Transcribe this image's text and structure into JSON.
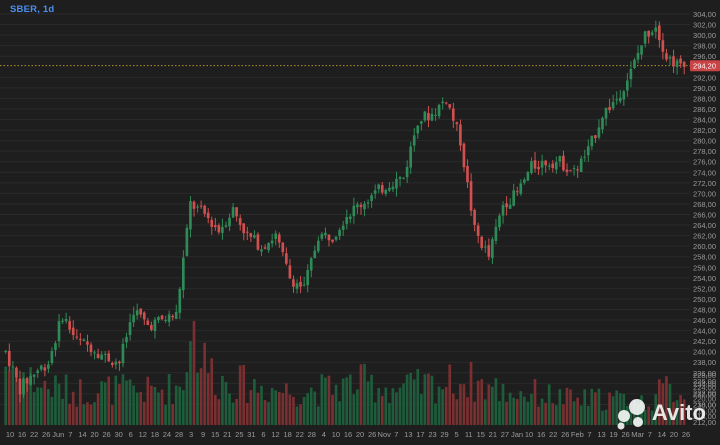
{
  "header": {
    "symbol_label": "SBER, 1d"
  },
  "watermark": {
    "text": "Avito"
  },
  "colors": {
    "background": "#1e1e1e",
    "grid": "#2a2a2a",
    "up": "#2e8b57",
    "down": "#d0504f",
    "volume_up": "#1f5c3b",
    "volume_down": "#7a2f30",
    "price_line": "#c9a227",
    "price_badge": "#c94444",
    "axis_text": "#9a9a9a"
  },
  "chart_data": {
    "type": "candlestick",
    "ylim": [
      228,
      304
    ],
    "current_price": {
      "value": 294.2,
      "label": "294,20"
    },
    "y_ticks": [
      "230,00",
      "232,00",
      "234,00",
      "236,00",
      "238,00",
      "240,00",
      "242,00",
      "244,00",
      "246,00",
      "248,00",
      "250,00",
      "252,00",
      "254,00",
      "256,00",
      "258,00",
      "260,00",
      "262,00",
      "264,00",
      "266,00",
      "268,00",
      "270,00",
      "272,00",
      "274,00",
      "276,00",
      "278,00",
      "280,00",
      "282,00",
      "284,00",
      "286,00",
      "288,00",
      "290,00",
      "292,00",
      "296,00",
      "298,00",
      "300,00",
      "302,00",
      "304,00"
    ],
    "y_tick_values": [
      230,
      232,
      234,
      236,
      238,
      240,
      242,
      244,
      246,
      248,
      250,
      252,
      254,
      256,
      258,
      260,
      262,
      264,
      266,
      268,
      270,
      272,
      274,
      276,
      278,
      280,
      282,
      284,
      286,
      288,
      290,
      292,
      296,
      298,
      300,
      302,
      304
    ],
    "volume_ticks": [
      "212,00",
      "214,00",
      "216,00",
      "218,00",
      "220,00",
      "222,00",
      "224,00",
      "226,00",
      "228,00"
    ],
    "volume_tick_values": [
      212,
      214,
      216,
      218,
      220,
      222,
      224,
      226,
      228
    ],
    "x_ticks": [
      "10",
      "16",
      "22",
      "26",
      "Jun",
      "7",
      "14",
      "20",
      "26",
      "30",
      "6",
      "12",
      "18",
      "24",
      "28",
      "3",
      "9",
      "15",
      "21",
      "25",
      "31",
      "6",
      "12",
      "18",
      "22",
      "28",
      "4",
      "10",
      "16",
      "20",
      "26",
      "Nov",
      "7",
      "13",
      "17",
      "23",
      "29",
      "5",
      "11",
      "15",
      "21",
      "27",
      "Jan",
      "10",
      "16",
      "22",
      "26",
      "Feb",
      "7",
      "13",
      "19",
      "26",
      "Mar",
      "7",
      "14",
      "20",
      "26"
    ],
    "price_anchors": [
      [
        0,
        240
      ],
      [
        4,
        233
      ],
      [
        8,
        236
      ],
      [
        12,
        238
      ],
      [
        16,
        247
      ],
      [
        20,
        242
      ],
      [
        24,
        241
      ],
      [
        28,
        239
      ],
      [
        32,
        238
      ],
      [
        36,
        248
      ],
      [
        40,
        245
      ],
      [
        44,
        246
      ],
      [
        48,
        247
      ],
      [
        52,
        268
      ],
      [
        56,
        266
      ],
      [
        60,
        263
      ],
      [
        64,
        267
      ],
      [
        68,
        262
      ],
      [
        72,
        260
      ],
      [
        76,
        262
      ],
      [
        80,
        254
      ],
      [
        84,
        252
      ],
      [
        88,
        262
      ],
      [
        92,
        262
      ],
      [
        96,
        266
      ],
      [
        100,
        268
      ],
      [
        104,
        270
      ],
      [
        108,
        272
      ],
      [
        112,
        273
      ],
      [
        116,
        284
      ],
      [
        120,
        285
      ],
      [
        124,
        288
      ],
      [
        128,
        280
      ],
      [
        132,
        263
      ],
      [
        136,
        258
      ],
      [
        140,
        268
      ],
      [
        144,
        270
      ],
      [
        148,
        275
      ],
      [
        152,
        276
      ],
      [
        156,
        276
      ],
      [
        160,
        274
      ],
      [
        164,
        278
      ],
      [
        168,
        285
      ],
      [
        172,
        288
      ],
      [
        176,
        293
      ],
      [
        180,
        300
      ],
      [
        183,
        302
      ],
      [
        186,
        296
      ],
      [
        190,
        294
      ],
      [
        192,
        294
      ]
    ],
    "volume_anchors": [
      [
        0,
        0.55
      ],
      [
        10,
        0.35
      ],
      [
        20,
        0.3
      ],
      [
        30,
        0.32
      ],
      [
        40,
        0.3
      ],
      [
        50,
        0.35
      ],
      [
        52,
        0.95
      ],
      [
        55,
        0.6
      ],
      [
        60,
        0.4
      ],
      [
        70,
        0.35
      ],
      [
        80,
        0.3
      ],
      [
        90,
        0.32
      ],
      [
        100,
        0.38
      ],
      [
        110,
        0.32
      ],
      [
        120,
        0.36
      ],
      [
        130,
        0.4
      ],
      [
        140,
        0.3
      ],
      [
        150,
        0.28
      ],
      [
        160,
        0.22
      ],
      [
        170,
        0.24
      ],
      [
        180,
        0.2
      ],
      [
        186,
        0.32
      ],
      [
        192,
        0.3
      ]
    ],
    "candle_count": 192
  }
}
